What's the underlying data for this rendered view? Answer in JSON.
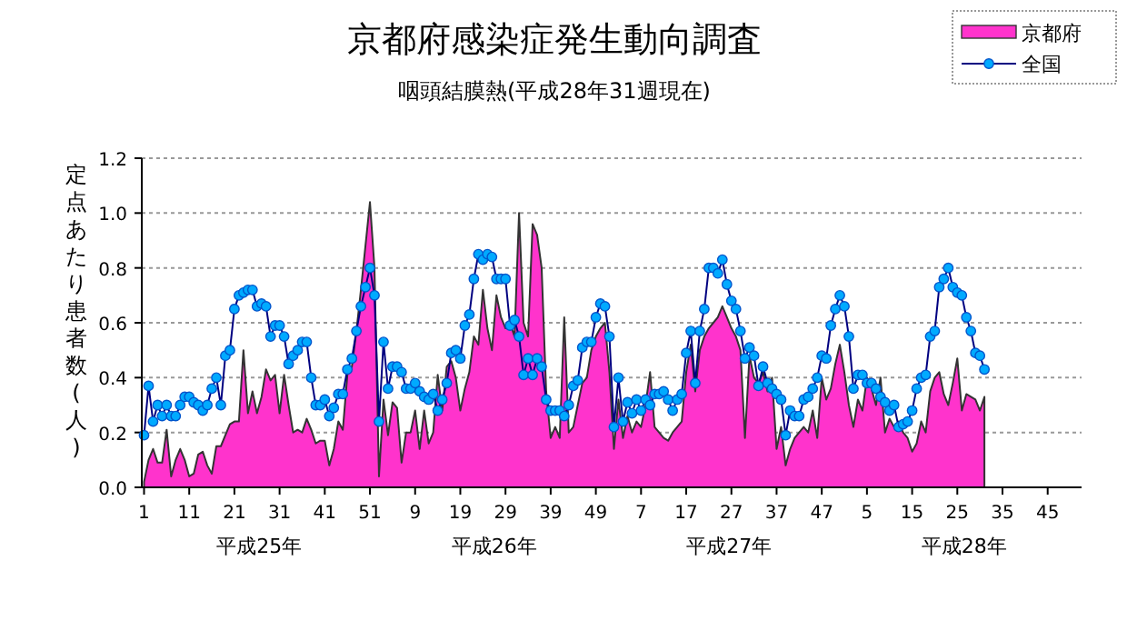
{
  "chart_data": {
    "type": "area",
    "title": "京都府感染症発生動向調査",
    "subtitle": "咽頭結膜熱(平成28年31週現在)",
    "ylabel": "定点あたり患者数(人)",
    "annotations": [
      "平成25年",
      "平成26年",
      "平成27年",
      "平成28年"
    ],
    "categories": [
      "1",
      null,
      null,
      null,
      null,
      null,
      null,
      null,
      null,
      null,
      "11",
      null,
      null,
      null,
      null,
      null,
      null,
      null,
      null,
      null,
      "21",
      null,
      null,
      null,
      null,
      null,
      null,
      null,
      null,
      null,
      "31",
      null,
      null,
      null,
      null,
      null,
      null,
      null,
      null,
      null,
      "41",
      null,
      null,
      null,
      null,
      null,
      null,
      null,
      null,
      null,
      "51",
      null,
      null,
      null,
      null,
      null,
      null,
      null,
      null,
      null,
      "9",
      null,
      null,
      null,
      null,
      null,
      null,
      null,
      null,
      null,
      "19",
      null,
      null,
      null,
      null,
      null,
      null,
      null,
      null,
      null,
      "29",
      null,
      null,
      null,
      null,
      null,
      null,
      null,
      null,
      null,
      "39",
      null,
      null,
      null,
      null,
      null,
      null,
      null,
      null,
      null,
      "49",
      null,
      null,
      null,
      null,
      null,
      null,
      null,
      null,
      null,
      "7",
      null,
      null,
      null,
      null,
      null,
      null,
      null,
      null,
      null,
      "17",
      null,
      null,
      null,
      null,
      null,
      null,
      null,
      null,
      null,
      "27",
      null,
      null,
      null,
      null,
      null,
      null,
      null,
      null,
      null,
      "37",
      null,
      null,
      null,
      null,
      null,
      null,
      null,
      null,
      null,
      "47",
      null,
      null,
      null,
      null,
      null,
      null,
      null,
      null,
      null,
      "5",
      null,
      null,
      null,
      null,
      null,
      null,
      null,
      null,
      null,
      "15",
      null,
      null,
      null,
      null,
      null,
      null,
      null,
      null,
      null,
      "25",
      null,
      null,
      null,
      null,
      null,
      null,
      null,
      null,
      null,
      "35",
      null,
      null,
      null,
      null,
      null,
      null,
      null,
      null,
      null,
      "45",
      null,
      null,
      null,
      null,
      null,
      null,
      null
    ],
    "series": [
      {
        "name": "京都府",
        "color": "#ff33cc",
        "values": [
          0.02,
          0.1,
          0.14,
          0.09,
          0.09,
          0.21,
          0.04,
          0.1,
          0.14,
          0.1,
          0.04,
          0.05,
          0.12,
          0.13,
          0.08,
          0.05,
          0.15,
          0.15,
          0.19,
          0.23,
          0.24,
          0.24,
          0.5,
          0.27,
          0.35,
          0.27,
          0.33,
          0.43,
          0.39,
          0.41,
          0.27,
          0.41,
          0.3,
          0.2,
          0.21,
          0.2,
          0.25,
          0.21,
          0.16,
          0.17,
          0.17,
          0.08,
          0.14,
          0.24,
          0.21,
          0.41,
          0.44,
          0.57,
          0.72,
          0.88,
          1.04,
          0.8,
          0.04,
          0.32,
          0.19,
          0.31,
          0.29,
          0.09,
          0.2,
          0.2,
          0.28,
          0.14,
          0.28,
          0.16,
          0.2,
          0.41,
          0.28,
          0.44,
          0.46,
          0.4,
          0.28,
          0.36,
          0.42,
          0.55,
          0.52,
          0.72,
          0.58,
          0.5,
          0.7,
          0.62,
          0.58,
          0.6,
          0.55,
          1.0,
          0.6,
          0.55,
          0.96,
          0.92,
          0.8,
          0.35,
          0.18,
          0.22,
          0.18,
          0.62,
          0.2,
          0.22,
          0.3,
          0.38,
          0.4,
          0.5,
          0.55,
          0.58,
          0.6,
          0.42,
          0.14,
          0.32,
          0.18,
          0.26,
          0.2,
          0.24,
          0.22,
          0.3,
          0.42,
          0.22,
          0.2,
          0.18,
          0.17,
          0.2,
          0.22,
          0.24,
          0.42,
          0.52,
          0.35,
          0.5,
          0.55,
          0.58,
          0.6,
          0.62,
          0.66,
          0.62,
          0.58,
          0.55,
          0.5,
          0.18,
          0.48,
          0.4,
          0.38,
          0.42,
          0.35,
          0.4,
          0.14,
          0.22,
          0.08,
          0.14,
          0.18,
          0.2,
          0.22,
          0.2,
          0.28,
          0.18,
          0.4,
          0.32,
          0.36,
          0.45,
          0.52,
          0.42,
          0.3,
          0.22,
          0.32,
          0.28,
          0.4,
          0.36,
          0.3,
          0.4,
          0.2,
          0.25,
          0.22,
          0.24,
          0.2,
          0.18,
          0.13,
          0.16,
          0.24,
          0.2,
          0.35,
          0.4,
          0.42,
          0.34,
          0.3,
          0.38,
          0.47,
          0.28,
          0.34,
          0.33,
          0.32,
          0.28,
          0.33,
          null,
          null,
          null,
          null,
          null,
          null,
          null,
          null,
          null,
          null,
          null,
          null,
          null,
          null,
          null,
          null,
          null,
          null,
          null,
          null,
          null
        ]
      },
      {
        "name": "全国",
        "type": "line",
        "marker": "circle",
        "color": "#00aaff",
        "values": [
          0.19,
          0.37,
          0.24,
          0.3,
          0.26,
          0.3,
          0.26,
          0.26,
          0.3,
          0.33,
          0.33,
          0.31,
          0.3,
          0.28,
          0.3,
          0.36,
          0.4,
          0.3,
          0.48,
          0.5,
          0.65,
          0.7,
          0.71,
          0.72,
          0.72,
          0.66,
          0.67,
          0.66,
          0.55,
          0.59,
          0.59,
          0.55,
          0.45,
          0.48,
          0.5,
          0.53,
          0.53,
          0.4,
          0.3,
          0.3,
          0.32,
          0.26,
          0.29,
          0.34,
          0.34,
          0.43,
          0.47,
          0.57,
          0.66,
          0.73,
          0.8,
          0.7,
          0.24,
          0.53,
          0.36,
          0.44,
          0.44,
          0.42,
          0.36,
          0.36,
          0.38,
          0.35,
          0.33,
          0.32,
          0.34,
          0.28,
          0.32,
          0.38,
          0.49,
          0.5,
          0.47,
          0.59,
          0.63,
          0.76,
          0.85,
          0.83,
          0.85,
          0.84,
          0.76,
          0.76,
          0.76,
          0.59,
          0.61,
          0.55,
          0.41,
          0.47,
          0.41,
          0.47,
          0.44,
          0.32,
          0.28,
          0.28,
          0.28,
          0.26,
          0.3,
          0.37,
          0.39,
          0.51,
          0.53,
          0.53,
          0.62,
          0.67,
          0.66,
          0.55,
          0.22,
          0.4,
          0.24,
          0.31,
          0.27,
          0.32,
          0.28,
          0.32,
          0.3,
          0.34,
          0.34,
          0.35,
          0.32,
          0.28,
          0.32,
          0.34,
          0.49,
          0.57,
          0.38,
          0.57,
          0.65,
          0.8,
          0.8,
          0.78,
          0.83,
          0.74,
          0.68,
          0.65,
          0.57,
          0.47,
          0.51,
          0.48,
          0.37,
          0.44,
          0.38,
          0.36,
          0.34,
          0.32,
          0.19,
          0.28,
          0.26,
          0.26,
          0.32,
          0.33,
          0.36,
          0.4,
          0.48,
          0.47,
          0.59,
          0.65,
          0.7,
          0.66,
          0.55,
          0.36,
          0.41,
          0.41,
          0.38,
          0.38,
          0.36,
          0.33,
          0.31,
          0.28,
          0.3,
          0.22,
          0.23,
          0.24,
          0.28,
          0.36,
          0.4,
          0.41,
          0.55,
          0.57,
          0.73,
          0.76,
          0.8,
          0.73,
          0.71,
          0.7,
          0.62,
          0.57,
          0.49,
          0.48,
          0.43,
          null,
          null,
          null,
          null,
          null,
          null,
          null,
          null,
          null,
          null,
          null,
          null,
          null,
          null,
          null,
          null,
          null,
          null,
          null,
          null,
          null
        ]
      }
    ],
    "ylim": [
      0,
      1.2
    ],
    "yticks": [
      {
        "value": 0,
        "label": "0.0"
      },
      {
        "value": 0.2,
        "label": "0.2"
      },
      {
        "value": 0.4,
        "label": "0.4"
      },
      {
        "value": 0.6,
        "label": "0.6"
      },
      {
        "value": 0.8,
        "label": "0.8"
      },
      {
        "value": 1.0,
        "label": "1.0"
      },
      {
        "value": 1.2,
        "label": "1.2"
      }
    ],
    "grid": "y",
    "legend": "top right"
  }
}
